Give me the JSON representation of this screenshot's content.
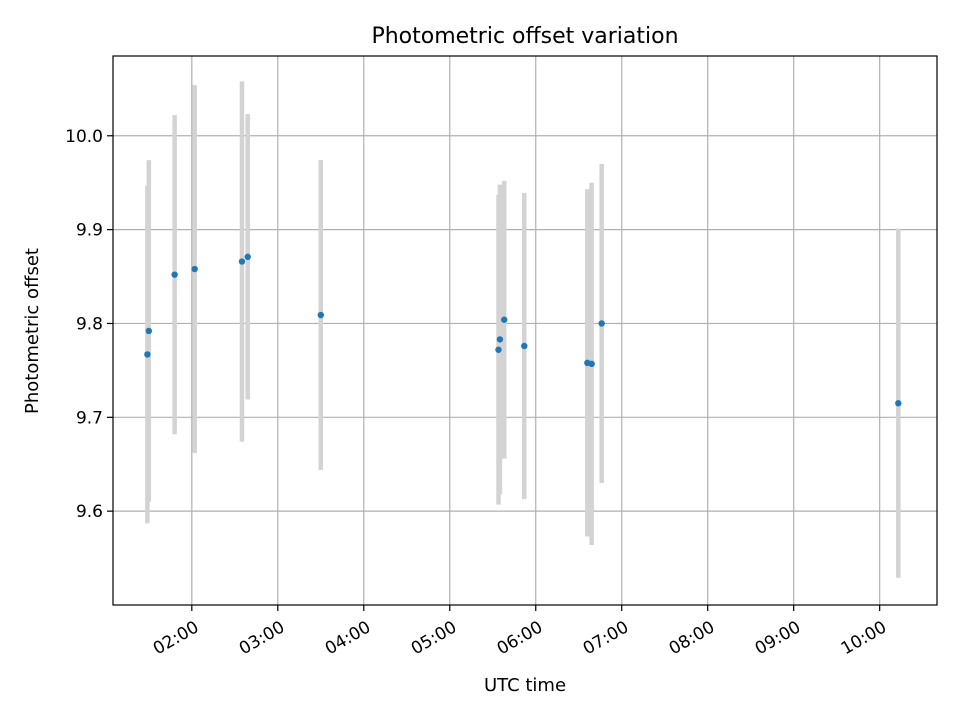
{
  "chart_data": {
    "type": "scatter",
    "title": "Photometric offset variation",
    "xlabel": "UTC time",
    "ylabel": "Photometric offset",
    "xlim": [
      "01:05",
      "10:40"
    ],
    "ylim": [
      9.5,
      10.085
    ],
    "grid": true,
    "marker_color": "#1f77b4",
    "errorbar_color": "#d3d3d3",
    "x_ticks": [
      "02:00",
      "03:00",
      "04:00",
      "05:00",
      "06:00",
      "07:00",
      "08:00",
      "09:00",
      "10:00"
    ],
    "y_ticks": [
      9.6,
      9.7,
      9.8,
      9.9,
      10.0
    ],
    "y_tick_labels": [
      "9.6",
      "9.7",
      "9.8",
      "9.9",
      "10.0"
    ],
    "points": [
      {
        "time": "01:29",
        "offset": 9.767,
        "err": 0.18
      },
      {
        "time": "01:30",
        "offset": 9.792,
        "err": 0.182
      },
      {
        "time": "01:48",
        "offset": 9.852,
        "err": 0.17
      },
      {
        "time": "02:02",
        "offset": 9.858,
        "err": 0.196
      },
      {
        "time": "02:35",
        "offset": 9.866,
        "err": 0.192
      },
      {
        "time": "02:39",
        "offset": 9.871,
        "err": 0.152
      },
      {
        "time": "03:30",
        "offset": 9.809,
        "err": 0.165
      },
      {
        "time": "05:34",
        "offset": 9.772,
        "err": 0.165
      },
      {
        "time": "05:35",
        "offset": 9.783,
        "err": 0.165
      },
      {
        "time": "05:38",
        "offset": 9.804,
        "err": 0.148
      },
      {
        "time": "05:52",
        "offset": 9.776,
        "err": 0.163
      },
      {
        "time": "06:36",
        "offset": 9.758,
        "err": 0.185
      },
      {
        "time": "06:39",
        "offset": 9.757,
        "err": 0.193
      },
      {
        "time": "06:46",
        "offset": 9.8,
        "err": 0.17
      },
      {
        "time": "10:13",
        "offset": 9.715,
        "err": 0.186
      }
    ]
  }
}
